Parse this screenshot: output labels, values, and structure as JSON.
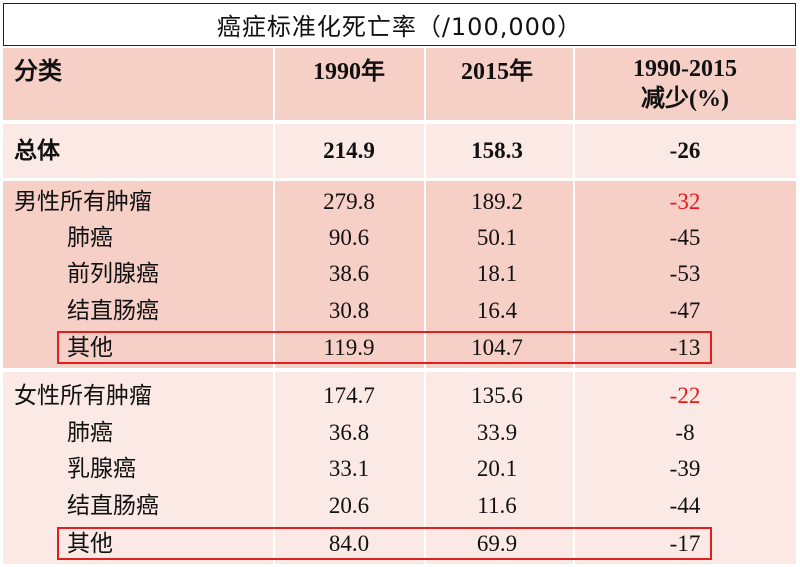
{
  "title": "癌症标准化死亡率（/100,000）",
  "header": {
    "category": "分类",
    "col_1990": "1990年",
    "col_2015": "2015年",
    "col_reduction_line1": "1990-2015",
    "col_reduction_line2": "减少(%)"
  },
  "rows": [
    {
      "label": "总体",
      "v1990": "214.9",
      "v2015": "158.3",
      "reduction": "-26"
    },
    {
      "label": "男性所有肿瘤",
      "v1990": "279.8",
      "v2015": "189.2",
      "reduction": "-32"
    },
    {
      "label": "肺癌",
      "v1990": "90.6",
      "v2015": "50.1",
      "reduction": "-45"
    },
    {
      "label": "前列腺癌",
      "v1990": "38.6",
      "v2015": "18.1",
      "reduction": "-53"
    },
    {
      "label": "结直肠癌",
      "v1990": "30.8",
      "v2015": "16.4",
      "reduction": "-47"
    },
    {
      "label": "其他",
      "v1990": "119.9",
      "v2015": "104.7",
      "reduction": "-13"
    },
    {
      "label": "女性所有肿瘤",
      "v1990": "174.7",
      "v2015": "135.6",
      "reduction": "-22"
    },
    {
      "label": "肺癌",
      "v1990": "36.8",
      "v2015": "33.9",
      "reduction": "-8"
    },
    {
      "label": "乳腺癌",
      "v1990": "33.1",
      "v2015": "20.1",
      "reduction": "-39"
    },
    {
      "label": "结直肠癌",
      "v1990": "20.6",
      "v2015": "11.6",
      "reduction": "-44"
    },
    {
      "label": "其他",
      "v1990": "84.0",
      "v2015": "69.9",
      "reduction": "-17"
    }
  ],
  "colors": {
    "header_band": "#f6cfc6",
    "light_band": "#fbe9e5",
    "highlight_text": "#e8191b",
    "highlight_box": "#e02020"
  }
}
